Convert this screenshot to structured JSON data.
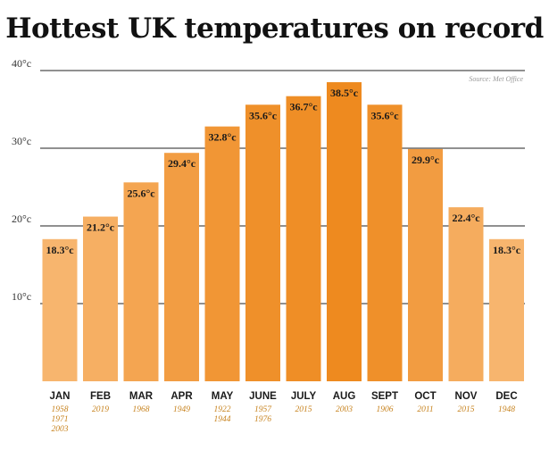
{
  "chart_data": {
    "type": "bar",
    "title": "Hottest UK temperatures on record",
    "source": "Source: Met Office",
    "unit_suffix": "°c",
    "ylim": [
      0,
      40
    ],
    "yticks": [
      {
        "value": 10,
        "label": "10°c"
      },
      {
        "value": 20,
        "label": "20°c"
      },
      {
        "value": 30,
        "label": "30°c"
      },
      {
        "value": 40,
        "label": "40°c"
      }
    ],
    "grid": true,
    "categories": [
      "JAN",
      "FEB",
      "MAR",
      "APR",
      "MAY",
      "JUNE",
      "JULY",
      "AUG",
      "SEPT",
      "OCT",
      "NOV",
      "DEC"
    ],
    "values": [
      18.3,
      21.2,
      25.6,
      29.4,
      32.8,
      35.6,
      36.7,
      38.5,
      35.6,
      29.9,
      22.4,
      18.3
    ],
    "value_labels": [
      "18.3°c",
      "21.2°c",
      "25.6°c",
      "29.4°c",
      "32.8°c",
      "35.6°c",
      "36.7°c",
      "38.5°c",
      "35.6°c",
      "29.9°c",
      "22.4°c",
      "18.3°c"
    ],
    "years": [
      [
        "1958",
        "1971",
        "2003"
      ],
      [
        "2019"
      ],
      [
        "1968"
      ],
      [
        "1949"
      ],
      [
        "1922",
        "1944"
      ],
      [
        "1957",
        "1976"
      ],
      [
        "2015"
      ],
      [
        "2003"
      ],
      [
        "1906"
      ],
      [
        "2011"
      ],
      [
        "2015"
      ],
      [
        "1948"
      ]
    ],
    "colors": {
      "bar_low": "#f7b56e",
      "bar_high": "#ee8a1f",
      "grid": "#222222",
      "year_text": "#c7831f"
    }
  }
}
